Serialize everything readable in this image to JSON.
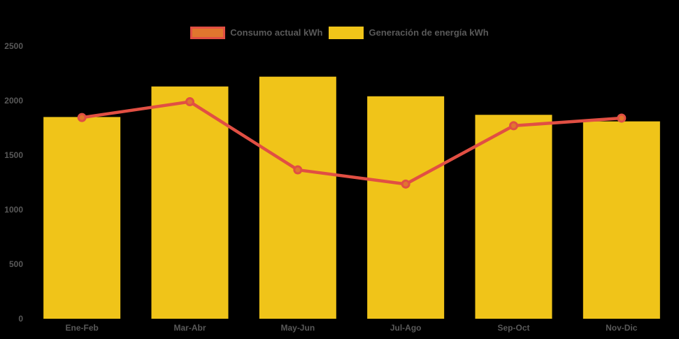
{
  "background_color": "#000000",
  "text_color": "#595959",
  "legend": {
    "items": [
      {
        "label": "Consumo actual kWh",
        "fill": "#E0762E",
        "border": "#E14F43"
      },
      {
        "label": "Generación de energía kWh",
        "fill": "#F0C419",
        "border": "#F0C419"
      }
    ]
  },
  "chart_data": {
    "type": "bar",
    "subtype": "bar-with-line-overlay",
    "title": "",
    "xlabel": "",
    "ylabel": "",
    "categories": [
      "Ene-Feb",
      "Mar-Abr",
      "May-Jun",
      "Jul-Ago",
      "Sep-Oct",
      "Nov-Dic"
    ],
    "series": [
      {
        "name": "Generación de energía kWh",
        "type": "bar",
        "values": [
          1850,
          2130,
          2220,
          2040,
          1870,
          1810
        ],
        "color": "#F0C419"
      },
      {
        "name": "Consumo actual kWh",
        "type": "line",
        "values": [
          1845,
          1990,
          1365,
          1235,
          1770,
          1840
        ],
        "color": "#E14F43",
        "marker_fill": "#E0762E"
      }
    ],
    "ylim": [
      0,
      2500
    ],
    "yticks": [
      0,
      500,
      1000,
      1500,
      2000,
      2500
    ],
    "grid": false,
    "legend_position": "top"
  }
}
